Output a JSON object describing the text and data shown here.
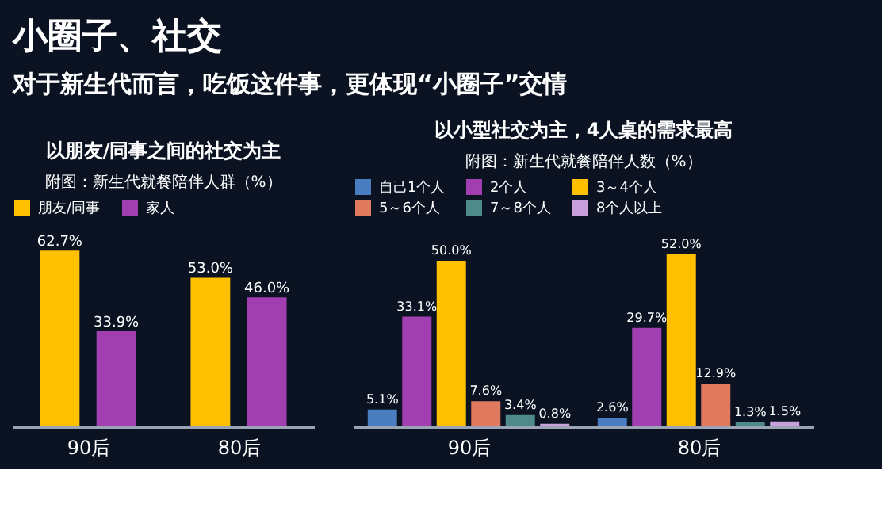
{
  "chart_data": [
    {
      "type": "bar",
      "title": "以朋友/同事之间的社交为主",
      "subtitle": "附图：新生代就餐陪伴人群（%）",
      "annotations": [
        "小圈子、社交",
        "对于新生代而言，吃饭这件事，更体现“小圈子”交情"
      ],
      "categories": [
        "90后",
        "80后"
      ],
      "legend": "top",
      "grid": false,
      "series": [
        {
          "name": "朋友/同事",
          "color": "#ffc000",
          "values": [
            62.7,
            53.0
          ],
          "value_labels": [
            "62.7%",
            "53.0%"
          ]
        },
        {
          "name": "家人",
          "color": "#a23fb0",
          "values": [
            33.9,
            46.0
          ],
          "value_labels": [
            "33.9%",
            "46.0%"
          ]
        }
      ]
    },
    {
      "type": "bar",
      "title": "以小型社交为主，4人桌的需求最高",
      "subtitle": "附图：新生代就餐陪伴人数（%）",
      "categories": [
        "90后",
        "80后"
      ],
      "legend": "top",
      "grid": false,
      "series": [
        {
          "name": "自己1个人",
          "color": "#4a7cc0",
          "values": [
            5.1,
            2.6
          ],
          "value_labels": [
            "5.1%",
            "2.6%"
          ]
        },
        {
          "name": "2个人",
          "color": "#a23fb0",
          "values": [
            33.1,
            29.7
          ],
          "value_labels": [
            "33.1%",
            "29.7%"
          ]
        },
        {
          "name": "3～4个人",
          "color": "#ffc000",
          "values": [
            50.0,
            52.0
          ],
          "value_labels": [
            "50.0%",
            "52.0%"
          ]
        },
        {
          "name": "5～6个人",
          "color": "#e07a5f",
          "values": [
            7.6,
            12.9
          ],
          "value_labels": [
            "7.6%",
            "12.9%"
          ]
        },
        {
          "name": "7～8个人",
          "color": "#4e8a8a",
          "values": [
            3.4,
            1.3
          ],
          "value_labels": [
            "3.4%",
            "1.3%"
          ]
        },
        {
          "name": "8个人以上",
          "color": "#c9a0dc",
          "values": [
            0.8,
            1.5
          ],
          "value_labels": [
            "0.8%",
            "1.5%"
          ]
        }
      ]
    }
  ]
}
